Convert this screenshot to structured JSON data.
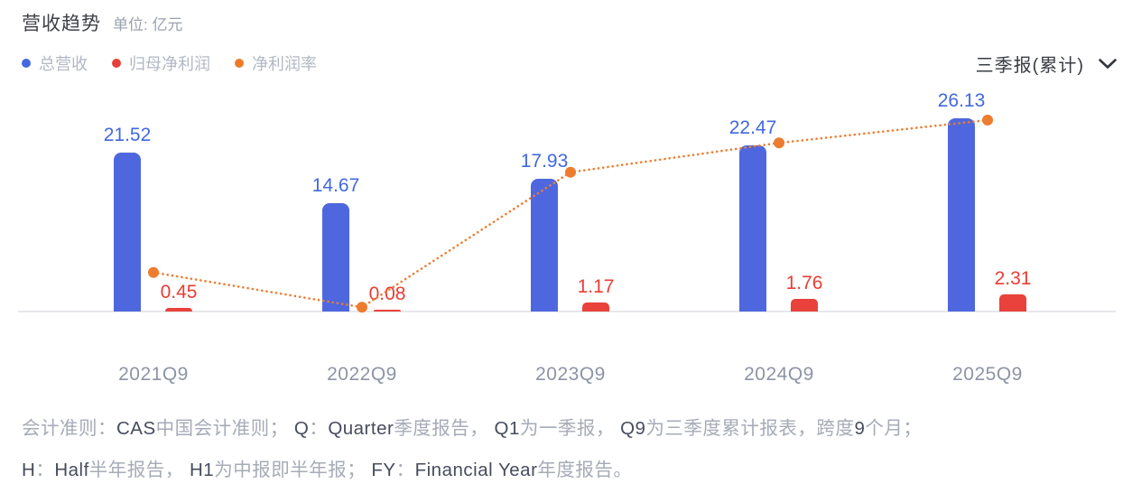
{
  "header": {
    "title": "营收趋势",
    "unit_label": "单位: 亿元",
    "period_selector": "三季报(累计)"
  },
  "legend": [
    {
      "label": "总营收",
      "color": "#4468e2"
    },
    {
      "label": "归母净利润",
      "color": "#e6403a"
    },
    {
      "label": "净利润率",
      "color": "#ee7b29"
    }
  ],
  "chart_data": {
    "type": "bar",
    "categories": [
      "2021Q9",
      "2022Q9",
      "2023Q9",
      "2024Q9",
      "2025Q9"
    ],
    "series": [
      {
        "name": "总营收",
        "type": "bar",
        "color": "#4f67de",
        "label_color": "#4168e0",
        "values": [
          21.52,
          14.67,
          17.93,
          22.47,
          26.13
        ],
        "value_labels_shown": true
      },
      {
        "name": "归母净利润",
        "type": "bar",
        "color": "#e9413c",
        "label_color": "#e93d33",
        "values": [
          0.45,
          0.08,
          1.17,
          1.76,
          2.31
        ],
        "value_labels_shown": true
      },
      {
        "name": "净利润率",
        "type": "line",
        "line_style": "dotted",
        "color": "#ee7c2e",
        "unit": "%",
        "values": [
          2.09,
          0.55,
          6.53,
          7.83,
          8.84
        ],
        "value_labels_shown": false
      }
    ],
    "unit": "亿元",
    "title": "营收趋势",
    "grid": false,
    "y_axis_shown": false,
    "legend_position": "top-left"
  },
  "footer": {
    "lines": [
      {
        "segments": [
          {
            "text": "会计准则：",
            "em": false
          },
          {
            "text": "CAS",
            "em": true
          },
          {
            "text": "中国会计准则； ",
            "em": false
          },
          {
            "text": "Q",
            "em": true
          },
          {
            "text": "：",
            "em": false
          },
          {
            "text": "Quarter",
            "em": true
          },
          {
            "text": "季度报告， ",
            "em": false
          },
          {
            "text": "Q1",
            "em": true
          },
          {
            "text": "为一季报， ",
            "em": false
          },
          {
            "text": "Q9",
            "em": true
          },
          {
            "text": "为三季度累计报表，跨度",
            "em": false
          },
          {
            "text": "9",
            "em": true
          },
          {
            "text": "个月；",
            "em": false
          }
        ]
      },
      {
        "segments": [
          {
            "text": "H",
            "em": true
          },
          {
            "text": "：",
            "em": false
          },
          {
            "text": "Half",
            "em": true
          },
          {
            "text": "半年报告， ",
            "em": false
          },
          {
            "text": "H1",
            "em": true
          },
          {
            "text": "为中报即半年报； ",
            "em": false
          },
          {
            "text": "FY",
            "em": true
          },
          {
            "text": "：",
            "em": false
          },
          {
            "text": "Financial Year",
            "em": true
          },
          {
            "text": "年度报告。",
            "em": false
          }
        ]
      }
    ]
  },
  "colors": {
    "revenue_bar": "#4f67de",
    "profit_bar": "#e9413c",
    "margin_line": "#ee7c2e",
    "axis_line": "#e6e8ec",
    "x_label": "#8e94a6",
    "footer_normal": "#a6abb7",
    "footer_emphasis": "#474c5e"
  }
}
